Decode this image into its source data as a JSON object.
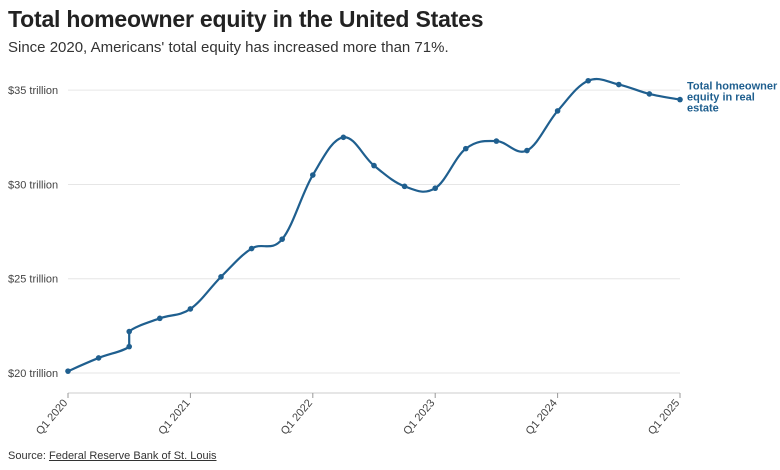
{
  "header": {
    "title": "Total homeowner equity in the United States",
    "subtitle": "Since 2020, Americans' total equity has increased more than 71%."
  },
  "source": {
    "label": "Source:",
    "link_text": "Federal Reserve Bank of St. Louis"
  },
  "chart_data": {
    "type": "line",
    "x_index": [
      0,
      1,
      2,
      2,
      3,
      4,
      5,
      6,
      7,
      8,
      9,
      10,
      11,
      12,
      13,
      14,
      15,
      16,
      17,
      18,
      19,
      20
    ],
    "series": [
      {
        "name": "Total homeowner equity in real estate",
        "name_lines": [
          "Total homeowner",
          "equity in real",
          "estate"
        ],
        "values": [
          20.1,
          20.8,
          21.4,
          22.2,
          22.9,
          23.4,
          25.1,
          26.6,
          27.1,
          30.5,
          32.5,
          31.0,
          29.9,
          29.8,
          31.9,
          32.3,
          31.8,
          33.9,
          35.5,
          35.3,
          34.8,
          34.5
        ],
        "color": "#1f5f8f"
      }
    ],
    "x_tick_labels": [
      {
        "index": 0,
        "label": "Q1 2020"
      },
      {
        "index": 4,
        "label": "Q1 2021"
      },
      {
        "index": 8,
        "label": "Q1 2022"
      },
      {
        "index": 12,
        "label": "Q1 2023"
      },
      {
        "index": 16,
        "label": "Q1 2024"
      },
      {
        "index": 20,
        "label": "Q1 2025"
      }
    ],
    "y_ticks": [
      {
        "value": 20,
        "label": "$20 trillion"
      },
      {
        "value": 25,
        "label": "$25 trillion"
      },
      {
        "value": 30,
        "label": "$30 trillion"
      },
      {
        "value": 35,
        "label": "$35 trillion"
      }
    ],
    "ylim": [
      19.1,
      36.6
    ],
    "xlim": [
      0,
      20
    ],
    "grid": true,
    "xlabel": "",
    "ylabel": ""
  }
}
